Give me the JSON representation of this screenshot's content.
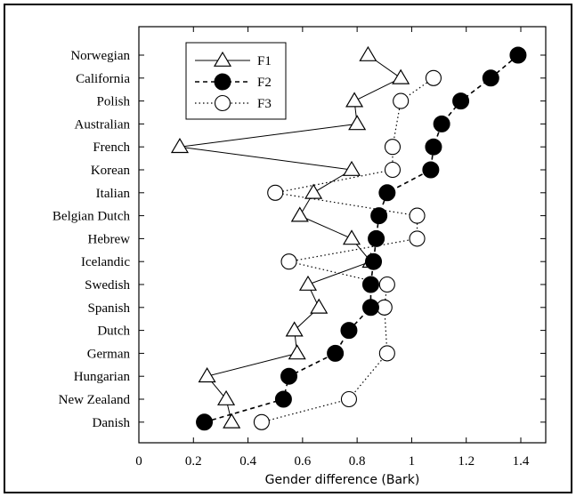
{
  "chart_data": {
    "type": "line",
    "orientation": "horizontal-categories",
    "xlabel": "Gender difference (Bark)",
    "ylabel": "",
    "xlim": [
      0,
      1.5
    ],
    "xticks": [
      0,
      0.2,
      0.4,
      0.6,
      0.8,
      1,
      1.2,
      1.4
    ],
    "xtick_labels": [
      "0",
      "0.2",
      "0.4",
      "0.6",
      "0.8",
      "1",
      "1.2",
      "1.4"
    ],
    "grid": false,
    "legend_position": "top-left",
    "categories": [
      "Norwegian",
      "California",
      "Polish",
      "Australian",
      "French",
      "Korean",
      "Italian",
      "Belgian Dutch",
      "Hebrew",
      "Icelandic",
      "Swedish",
      "Spanish",
      "Dutch",
      "German",
      "Hungarian",
      "New Zealand",
      "Danish"
    ],
    "series": [
      {
        "name": "F1",
        "marker": "triangle-open",
        "line": "solid",
        "color": "#000000",
        "values": [
          0.84,
          0.96,
          0.79,
          0.8,
          0.15,
          0.78,
          0.64,
          0.59,
          0.78,
          0.85,
          0.62,
          0.66,
          0.57,
          0.58,
          0.25,
          0.32,
          0.34
        ]
      },
      {
        "name": "F2",
        "marker": "circle-filled",
        "line": "dashed",
        "color": "#000000",
        "values": [
          1.39,
          1.29,
          1.18,
          1.11,
          1.08,
          1.07,
          0.91,
          0.88,
          0.87,
          0.86,
          0.85,
          0.85,
          0.77,
          0.72,
          0.55,
          0.53,
          0.24
        ]
      },
      {
        "name": "F3",
        "marker": "circle-open",
        "line": "dotted",
        "color": "#000000",
        "values": [
          null,
          1.08,
          0.96,
          null,
          0.93,
          0.93,
          0.5,
          1.02,
          1.02,
          0.55,
          0.91,
          0.9,
          null,
          0.91,
          null,
          0.77,
          0.45
        ]
      }
    ]
  }
}
